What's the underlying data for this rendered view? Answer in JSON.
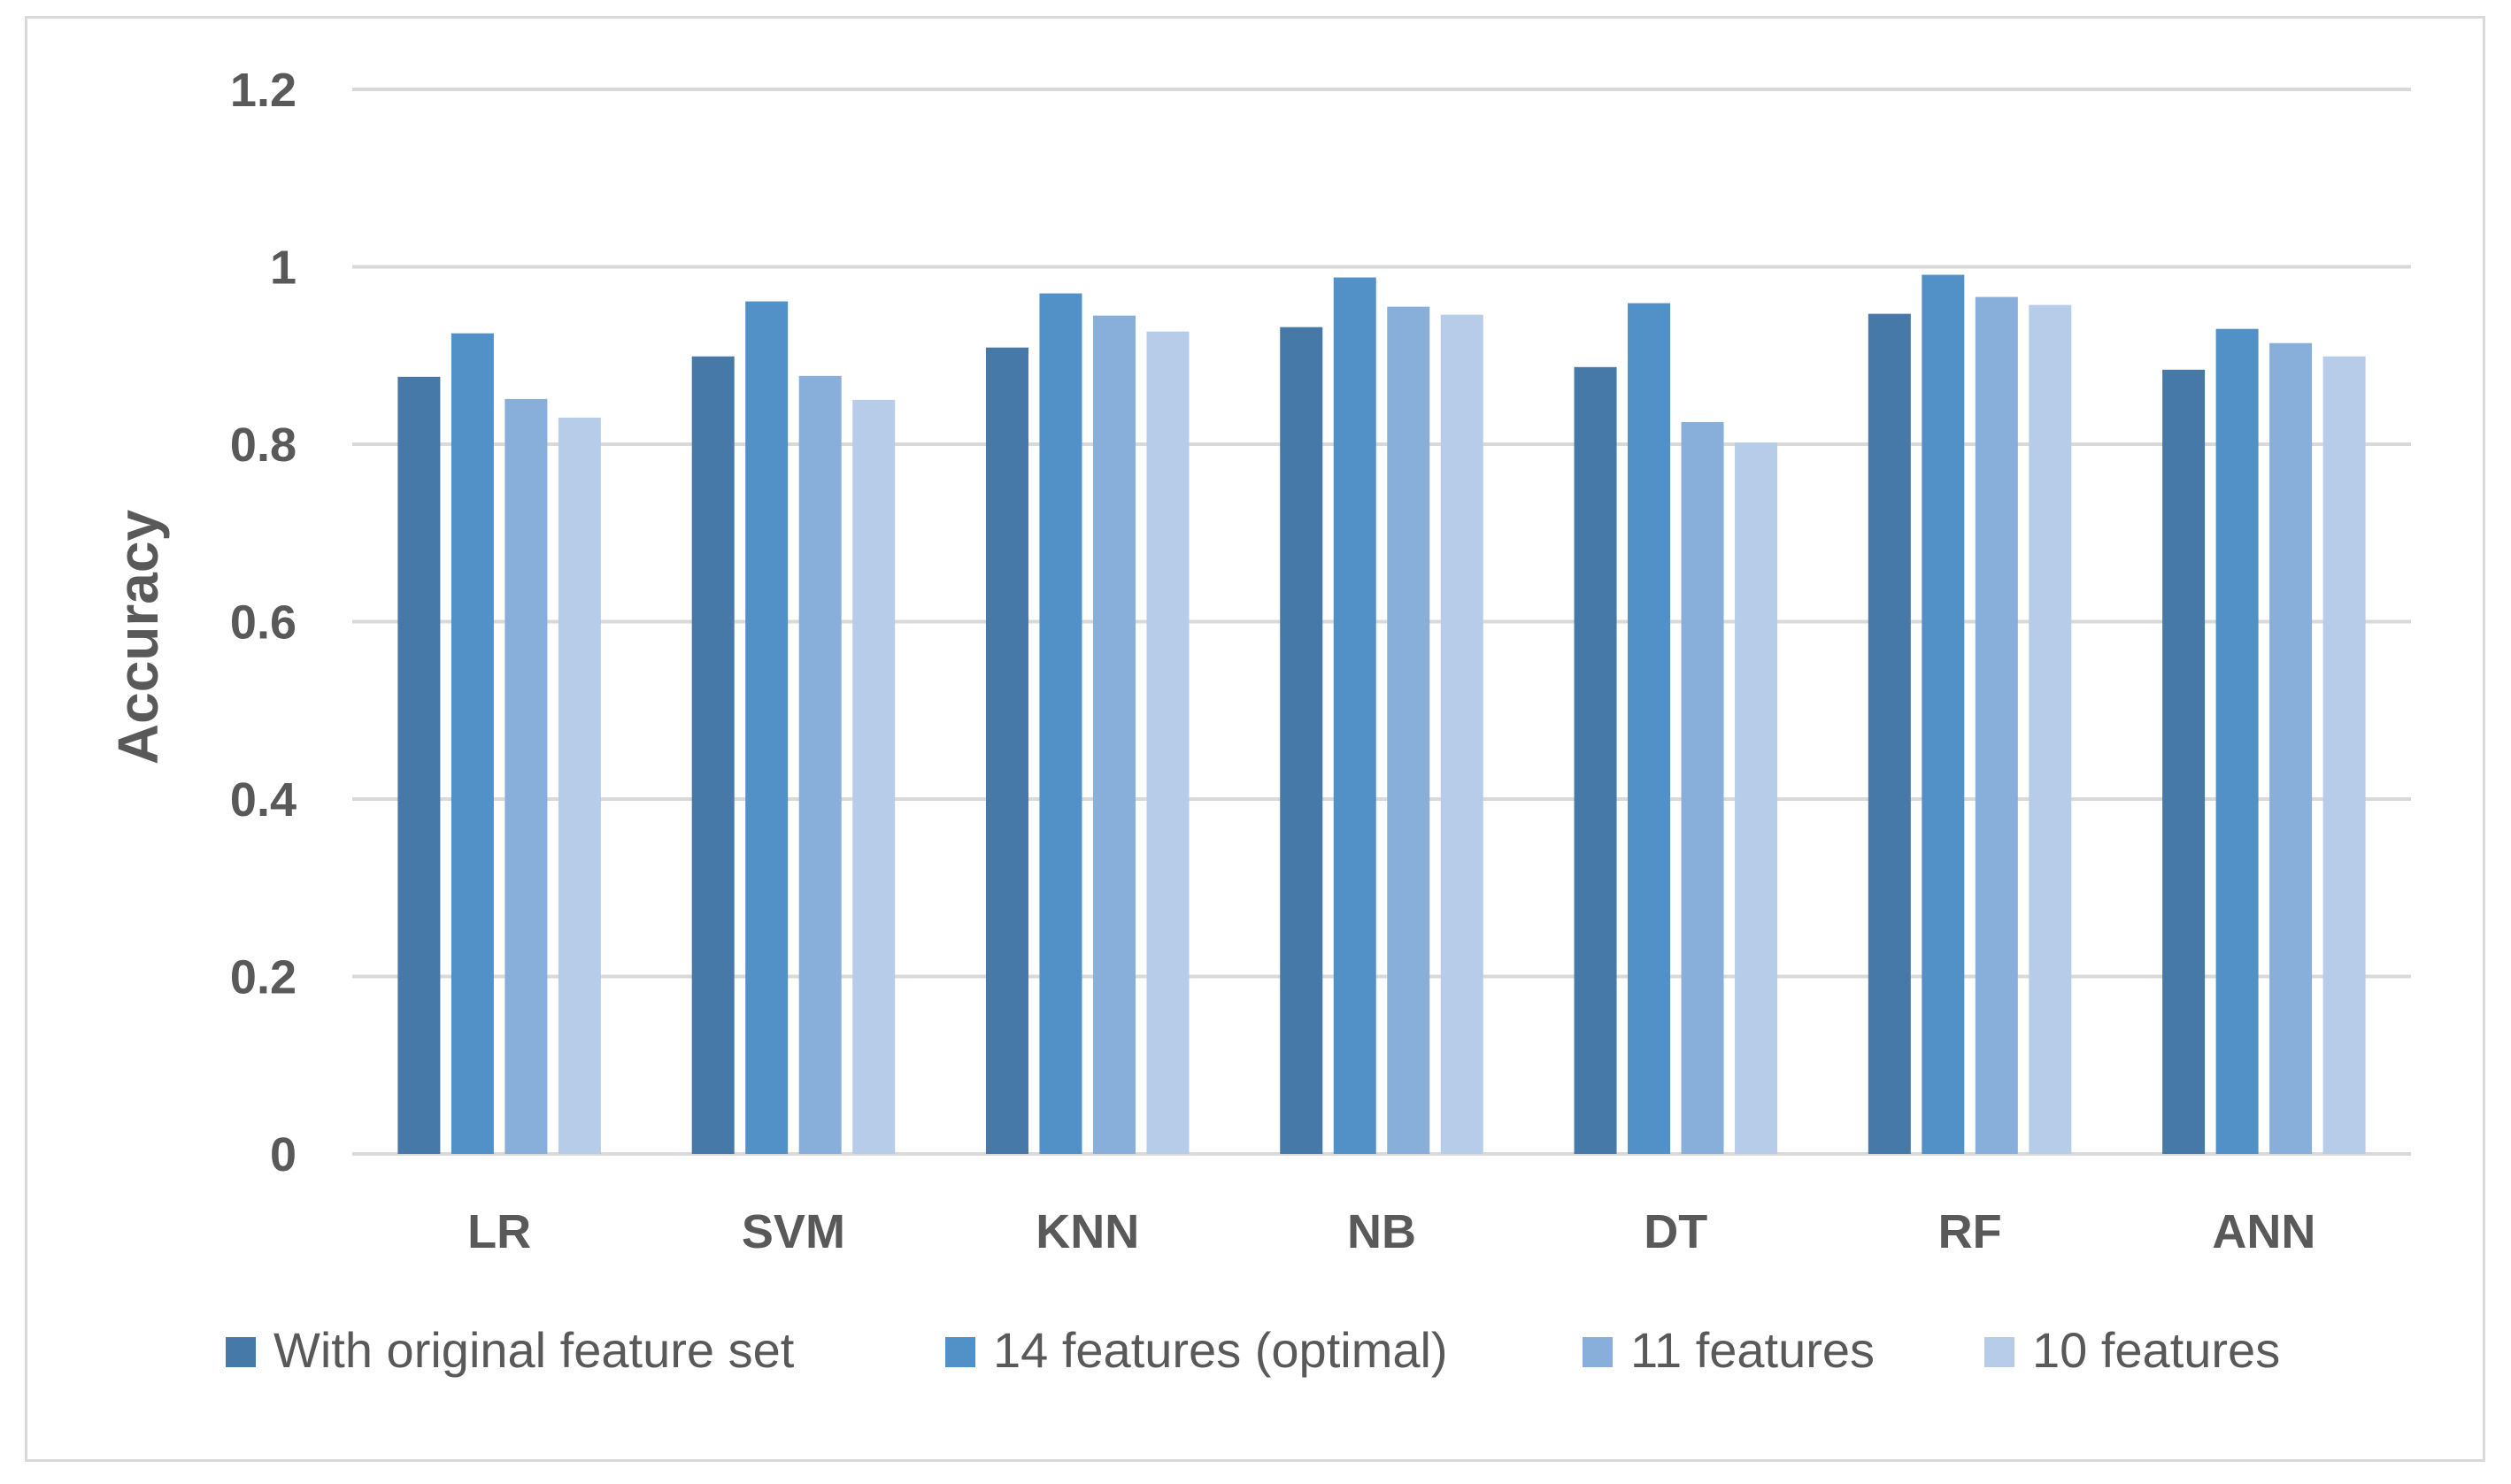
{
  "chart_data": {
    "type": "bar",
    "title": "",
    "xlabel": "",
    "ylabel": "Accuracy",
    "categories": [
      "LR",
      "SVM",
      "KNN",
      "NB",
      "DT",
      "RF",
      "ANN"
    ],
    "series": [
      {
        "name": "With original feature set",
        "color": "#4679a8",
        "values": [
          0.876,
          0.899,
          0.909,
          0.932,
          0.887,
          0.947,
          0.884
        ]
      },
      {
        "name": "14 features (optimal)",
        "color": "#5191c8",
        "values": [
          0.925,
          0.961,
          0.97,
          0.988,
          0.959,
          0.991,
          0.93
        ]
      },
      {
        "name": "11 features",
        "color": "#88afda",
        "values": [
          0.851,
          0.877,
          0.945,
          0.955,
          0.825,
          0.966,
          0.914
        ]
      },
      {
        "name": "10 features",
        "color": "#b7cce8",
        "values": [
          0.83,
          0.85,
          0.927,
          0.946,
          0.802,
          0.957,
          0.899
        ]
      }
    ],
    "ylim": [
      0,
      1.2
    ],
    "yticks": [
      0,
      0.2,
      0.4,
      0.6,
      0.8,
      1,
      1.2
    ],
    "grid": true,
    "gridline_color": "#d9d9d9",
    "legend_position": "bottom"
  }
}
